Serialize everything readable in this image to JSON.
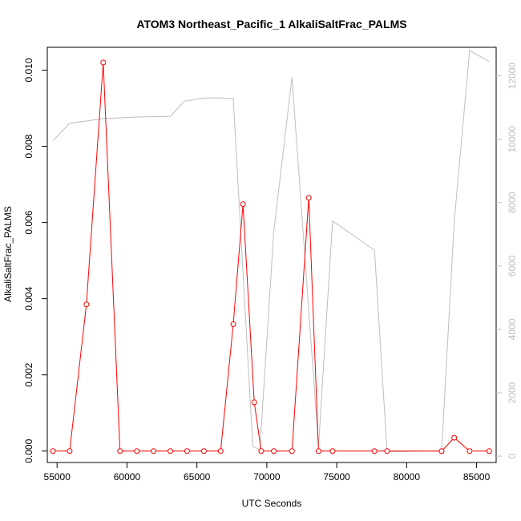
{
  "chart_data": {
    "type": "line",
    "title": "ATOM3 Northeast_Pacific_1 AlkaliSaltFrac_PALMS",
    "xlabel": "UTC Seconds",
    "ylabel": "AlkaliSaltFrac_PALMS",
    "xlim": [
      54300,
      86400
    ],
    "ylim": [
      -0.0003,
      0.0106
    ],
    "y2lim": [
      -200,
      12900
    ],
    "x_ticks": [
      55000,
      60000,
      65000,
      70000,
      75000,
      80000,
      85000
    ],
    "y_ticks": [
      0.0,
      0.002,
      0.004,
      0.006,
      0.008,
      0.01
    ],
    "y_tick_labels": [
      "0.000",
      "0.002",
      "0.004",
      "0.006",
      "0.008",
      "0.010"
    ],
    "y2_ticks": [
      0,
      2000,
      4000,
      6000,
      8000,
      10000,
      12000
    ],
    "grid": false,
    "colors": {
      "primary": "#ff0000",
      "secondary": "#bebebe",
      "axis": "#000000"
    },
    "series": [
      {
        "axis": "left",
        "style": "line+open-circles",
        "color": "#ff0000",
        "x": [
          54700,
          55900,
          57100,
          58300,
          59500,
          60700,
          61900,
          63100,
          64300,
          65500,
          66700,
          67600,
          68300,
          69100,
          69600,
          70500,
          71800,
          73000,
          73700,
          74700,
          77700,
          78600,
          82500,
          83400,
          84500,
          85900
        ],
        "y": [
          0.0,
          0.0,
          0.00385,
          0.0102,
          0.0,
          0.0,
          0.0,
          0.0,
          0.0,
          0.0,
          0.0,
          0.00333,
          0.00648,
          0.00128,
          0.0,
          0.0,
          0.0,
          0.00665,
          0.0,
          0.0,
          0.0,
          0.0,
          0.0,
          0.00035,
          0.0,
          0.0
        ]
      },
      {
        "axis": "right",
        "style": "line",
        "color": "#bebebe",
        "x": [
          54700,
          55900,
          58300,
          60700,
          63100,
          64100,
          65500,
          66700,
          67600,
          69000,
          69500,
          70500,
          71800,
          73700,
          74700,
          77700,
          78600,
          82500,
          83400,
          84500,
          85900
        ],
        "y": [
          9950,
          10500,
          10650,
          10700,
          10720,
          11200,
          11300,
          11300,
          11280,
          310,
          200,
          7100,
          11950,
          310,
          7420,
          6500,
          140,
          160,
          7400,
          12800,
          12450
        ]
      }
    ]
  }
}
